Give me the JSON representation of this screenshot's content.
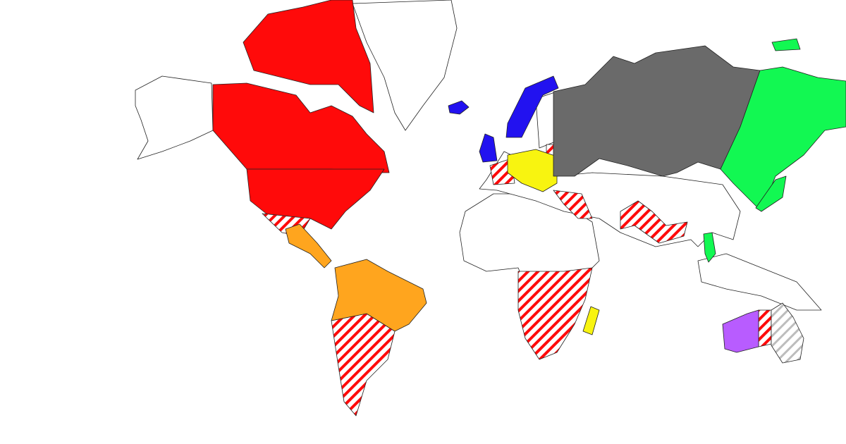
{
  "map": {
    "colors": {
      "red": "#ff0a0a",
      "orange": "#ffa51e",
      "blue": "#2212f0",
      "yellow": "#f8f410",
      "grey": "#6a6a6a",
      "green": "#12f852",
      "purple": "#b85cff",
      "light_grey": "#bdbdbd"
    },
    "unassigned": "#ffffff",
    "border": "#222222"
  }
}
